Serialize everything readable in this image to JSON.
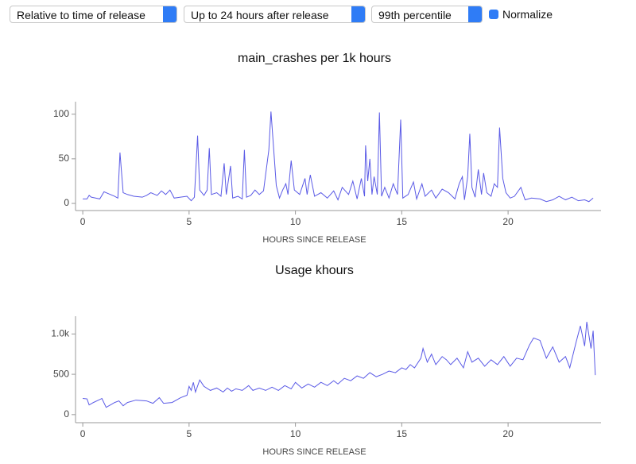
{
  "controls": {
    "time_mode": "Relative to time of release",
    "window": "Up to 24 hours after release",
    "percentile": "99th percentile",
    "normalize": "Normalize"
  },
  "chart_data": [
    {
      "type": "line",
      "title": "main_crashes per 1k hours",
      "xlabel": "HOURS SINCE RELEASE",
      "color": "#5a5ae6",
      "x": [
        0,
        0.2,
        0.3,
        0.4,
        0.6,
        0.8,
        1.0,
        1.2,
        1.5,
        1.65,
        1.75,
        1.9,
        2.1,
        2.4,
        2.8,
        3.0,
        3.2,
        3.5,
        3.7,
        3.9,
        4.1,
        4.3,
        4.6,
        4.9,
        5.1,
        5.25,
        5.4,
        5.5,
        5.7,
        5.85,
        5.95,
        6.05,
        6.3,
        6.5,
        6.65,
        6.75,
        6.95,
        7.05,
        7.3,
        7.5,
        7.6,
        7.7,
        7.9,
        8.1,
        8.3,
        8.5,
        8.75,
        8.85,
        8.95,
        9.1,
        9.25,
        9.4,
        9.55,
        9.65,
        9.8,
        9.95,
        10.2,
        10.45,
        10.55,
        10.7,
        10.9,
        11.2,
        11.5,
        11.8,
        12.0,
        12.2,
        12.5,
        12.7,
        12.9,
        13.1,
        13.25,
        13.3,
        13.4,
        13.5,
        13.6,
        13.7,
        13.85,
        13.95,
        14.05,
        14.2,
        14.4,
        14.6,
        14.8,
        14.95,
        15.05,
        15.3,
        15.55,
        15.7,
        15.95,
        16.1,
        16.4,
        16.6,
        16.9,
        17.2,
        17.5,
        17.7,
        17.85,
        17.95,
        18.1,
        18.2,
        18.3,
        18.45,
        18.6,
        18.75,
        18.85,
        19.0,
        19.2,
        19.35,
        19.5,
        19.6,
        19.75,
        19.9,
        20.1,
        20.3,
        20.6,
        20.8,
        21.1,
        21.5,
        21.8,
        22.1,
        22.4,
        22.7,
        23.0,
        23.3,
        23.6,
        23.8,
        24.0
      ],
      "values": [
        5,
        5,
        9,
        7,
        6,
        5,
        13,
        11,
        8,
        6,
        57,
        12,
        10,
        8,
        7,
        9,
        12,
        9,
        14,
        10,
        15,
        6,
        7,
        8,
        3,
        7,
        76,
        15,
        9,
        15,
        62,
        10,
        12,
        8,
        45,
        10,
        42,
        6,
        8,
        5,
        60,
        7,
        9,
        15,
        10,
        14,
        60,
        103,
        70,
        20,
        6,
        15,
        22,
        10,
        48,
        15,
        10,
        28,
        10,
        32,
        8,
        12,
        6,
        14,
        4,
        18,
        10,
        25,
        5,
        28,
        8,
        65,
        25,
        50,
        10,
        30,
        10,
        102,
        8,
        18,
        6,
        22,
        10,
        94,
        6,
        10,
        24,
        5,
        22,
        8,
        15,
        6,
        16,
        12,
        5,
        22,
        30,
        4,
        30,
        78,
        18,
        7,
        38,
        10,
        34,
        12,
        8,
        22,
        18,
        85,
        28,
        12,
        6,
        8,
        18,
        4,
        6,
        5,
        2,
        4,
        8,
        4,
        7,
        3,
        4,
        2,
        6
      ],
      "xlim": [
        -0.34,
        24.37
      ],
      "ylim": [
        -8,
        114
      ],
      "xticks": [
        0,
        5,
        10,
        15,
        20
      ],
      "yticks": [
        0,
        50,
        100
      ]
    },
    {
      "type": "line",
      "title": "Usage khours",
      "xlabel": "HOURS SINCE RELEASE",
      "color": "#5a5ae6",
      "x": [
        0,
        0.2,
        0.3,
        0.5,
        0.9,
        1.1,
        1.5,
        1.7,
        1.9,
        2.1,
        2.5,
        3.0,
        3.3,
        3.6,
        3.8,
        4.2,
        4.6,
        4.9,
        5.0,
        5.1,
        5.2,
        5.3,
        5.5,
        5.7,
        6.0,
        6.3,
        6.6,
        6.8,
        7.0,
        7.2,
        7.5,
        7.8,
        8.0,
        8.3,
        8.6,
        8.9,
        9.2,
        9.5,
        9.8,
        10.0,
        10.3,
        10.6,
        10.9,
        11.2,
        11.5,
        11.8,
        12.0,
        12.3,
        12.6,
        12.9,
        13.2,
        13.5,
        13.8,
        14.1,
        14.4,
        14.7,
        15.0,
        15.2,
        15.4,
        15.6,
        15.9,
        16.0,
        16.2,
        16.4,
        16.6,
        16.9,
        17.1,
        17.3,
        17.6,
        17.9,
        18.1,
        18.3,
        18.6,
        18.9,
        19.2,
        19.5,
        19.8,
        20.1,
        20.4,
        20.7,
        21.0,
        21.2,
        21.5,
        21.8,
        22.1,
        22.4,
        22.7,
        22.9,
        23.2,
        23.4,
        23.6,
        23.7,
        23.9,
        24.0,
        24.1
      ],
      "values": [
        200,
        195,
        120,
        150,
        200,
        90,
        150,
        170,
        110,
        150,
        180,
        170,
        140,
        210,
        140,
        150,
        210,
        240,
        350,
        300,
        400,
        280,
        430,
        350,
        300,
        330,
        280,
        330,
        290,
        320,
        300,
        360,
        300,
        330,
        300,
        340,
        300,
        360,
        320,
        400,
        330,
        380,
        340,
        400,
        360,
        420,
        380,
        450,
        420,
        480,
        450,
        520,
        470,
        500,
        540,
        520,
        580,
        560,
        620,
        580,
        700,
        820,
        650,
        750,
        620,
        720,
        680,
        620,
        700,
        580,
        780,
        650,
        700,
        600,
        680,
        620,
        720,
        600,
        700,
        680,
        860,
        950,
        920,
        700,
        840,
        650,
        720,
        580,
        900,
        1100,
        850,
        1150,
        820,
        1040,
        490
      ],
      "xlim": [
        -0.34,
        24.37
      ],
      "ylim": [
        -100,
        1220
      ],
      "xticks": [
        0,
        5,
        10,
        15,
        20
      ],
      "yticks": [
        0,
        500,
        {
          "value": 1000,
          "label": "1.0k"
        }
      ]
    }
  ]
}
